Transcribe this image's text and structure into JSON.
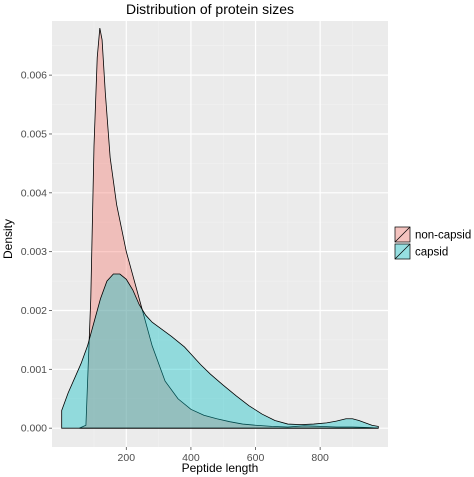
{
  "chart_data": {
    "type": "area",
    "title": "Distribution of protein sizes",
    "xlabel": "Peptide length",
    "ylabel": "Density",
    "xlim": [
      -30,
      1010
    ],
    "ylim": [
      -0.00032,
      0.00692
    ],
    "x_ticks": [
      200,
      400,
      600,
      800
    ],
    "x_tick_labels": [
      "200",
      "400",
      "600",
      "800"
    ],
    "y_ticks": [
      0,
      0.001,
      0.002,
      0.003,
      0.004,
      0.005,
      0.006
    ],
    "y_tick_labels": [
      "0.000",
      "0.001",
      "0.002",
      "0.003",
      "0.004",
      "0.005",
      "0.006"
    ],
    "grid": true,
    "legend_position": "right",
    "colors": {
      "panel": "#ebebeb",
      "grid_major": "#ffffff",
      "grid_minor": "#f2f2f2",
      "non_capsid": "#f8766d",
      "capsid": "#00bfc4"
    },
    "series": [
      {
        "name": "non-capsid",
        "color": "#f8766d",
        "opacity": 0.38,
        "x": [
          55,
          75,
          90,
          100,
          110,
          118,
          125,
          135,
          150,
          170,
          200,
          240,
          280,
          320,
          360,
          400,
          440,
          480,
          520,
          560,
          600,
          650,
          700,
          750,
          800,
          850,
          900,
          950,
          980
        ],
        "y": [
          0,
          5e-05,
          0.0022,
          0.0048,
          0.0063,
          0.0068,
          0.0066,
          0.0057,
          0.0046,
          0.0038,
          0.003,
          0.0022,
          0.0014,
          0.0008,
          0.0005,
          0.00032,
          0.00022,
          0.00016,
          0.00011,
          7e-05,
          5e-05,
          3e-05,
          2e-05,
          4e-05,
          3e-05,
          2e-05,
          2e-05,
          1e-05,
          0
        ]
      },
      {
        "name": "capsid",
        "color": "#00bfc4",
        "opacity": 0.38,
        "x": [
          0,
          20,
          40,
          60,
          80,
          100,
          120,
          140,
          160,
          180,
          200,
          220,
          240,
          260,
          280,
          300,
          320,
          340,
          360,
          380,
          400,
          430,
          460,
          500,
          540,
          580,
          620,
          660,
          700,
          740,
          780,
          820,
          850,
          880,
          900,
          920,
          940,
          960,
          980
        ],
        "y": [
          0.0003,
          0.0006,
          0.00085,
          0.0011,
          0.0014,
          0.0018,
          0.0022,
          0.0025,
          0.00262,
          0.00262,
          0.00253,
          0.00235,
          0.0021,
          0.00192,
          0.0018,
          0.00172,
          0.00164,
          0.00156,
          0.00147,
          0.00138,
          0.00126,
          0.00108,
          0.00092,
          0.00073,
          0.00055,
          0.00038,
          0.00024,
          0.00013,
          7e-05,
          6e-05,
          7e-05,
          9e-05,
          0.00012,
          0.00016,
          0.00016,
          0.00013,
          9e-05,
          5e-05,
          3e-05
        ]
      }
    ]
  }
}
